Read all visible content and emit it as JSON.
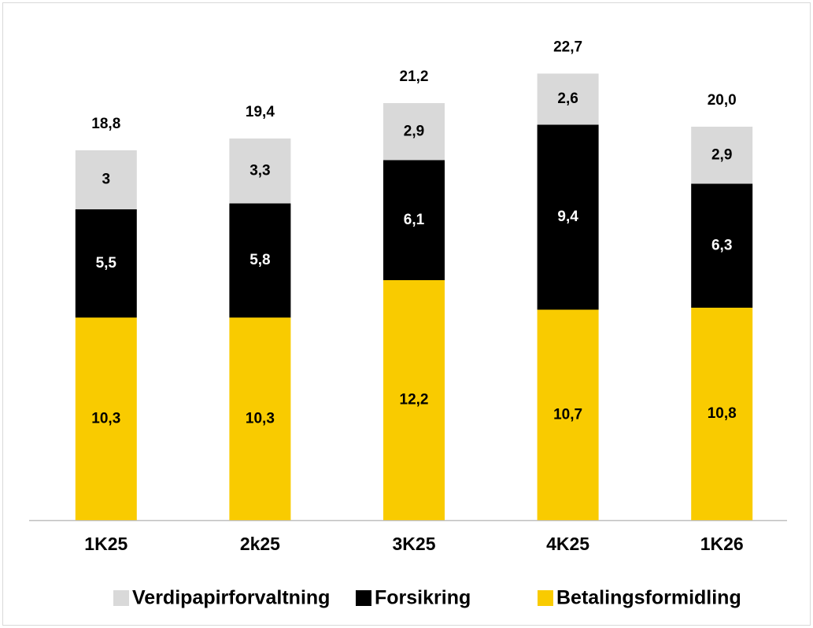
{
  "chart_data": {
    "type": "stacked_bar",
    "categories": [
      "1K25",
      "2k25",
      "3K25",
      "4K25",
      "1K26"
    ],
    "series": [
      {
        "name": "Verdipapirforvaltning",
        "color": "#d9d9d9",
        "values": [
          3,
          3.3,
          2.9,
          2.6,
          2.9
        ],
        "value_labels": [
          "3",
          "3,3",
          "2,9",
          "2,6",
          "2,9"
        ]
      },
      {
        "name": "Forsikring",
        "color": "#000000",
        "values": [
          5.5,
          5.8,
          6.1,
          9.4,
          6.3
        ],
        "value_labels": [
          "5,5",
          "5,8",
          "6,1",
          "9,4",
          "6,3"
        ]
      },
      {
        "name": "Betalingsformidling",
        "color": "#f9cb00",
        "values": [
          10.3,
          10.3,
          12.2,
          10.7,
          10.8
        ],
        "value_labels": [
          "10,3",
          "10,3",
          "12,2",
          "10,7",
          "10,8"
        ]
      }
    ],
    "totals": [
      18.8,
      19.4,
      21.2,
      22.7,
      20.0
    ],
    "total_labels": [
      "18,8",
      "19,4",
      "21,2",
      "22,7",
      "20,0"
    ],
    "ylim": [
      0,
      26
    ],
    "legend": "bottom"
  }
}
